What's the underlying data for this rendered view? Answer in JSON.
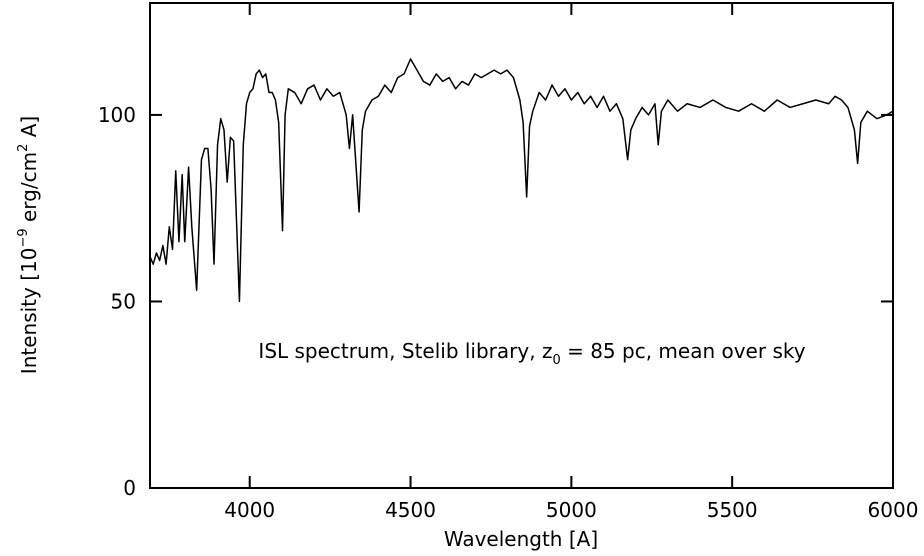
{
  "chart_data": {
    "type": "line",
    "x_label": "Wavelength [A]",
    "y_label": [
      "Intensity [10",
      "−9",
      " erg/cm",
      "2",
      " A]"
    ],
    "annotation": [
      "ISL spectrum, Stelib library, z",
      "0",
      " = 85 pc, mean over sky"
    ],
    "color": "#000000",
    "xlim": [
      3690,
      6000
    ],
    "ylim": [
      0,
      130
    ],
    "xticks": [
      4000,
      4500,
      5000,
      5500,
      6000
    ],
    "yticks": [
      0,
      50,
      100
    ],
    "x": [
      3690,
      3700,
      3710,
      3720,
      3730,
      3740,
      3750,
      3760,
      3770,
      3780,
      3790,
      3798,
      3810,
      3820,
      3835,
      3850,
      3860,
      3870,
      3880,
      3889,
      3900,
      3910,
      3920,
      3930,
      3940,
      3950,
      3968,
      3980,
      3990,
      4000,
      4010,
      4020,
      4030,
      4040,
      4050,
      4060,
      4070,
      4080,
      4090,
      4102,
      4110,
      4120,
      4140,
      4160,
      4180,
      4200,
      4220,
      4240,
      4260,
      4280,
      4300,
      4310,
      4320,
      4340,
      4350,
      4360,
      4380,
      4400,
      4420,
      4440,
      4460,
      4480,
      4500,
      4520,
      4540,
      4560,
      4580,
      4600,
      4620,
      4640,
      4660,
      4680,
      4700,
      4720,
      4740,
      4760,
      4780,
      4800,
      4820,
      4840,
      4850,
      4861,
      4870,
      4880,
      4900,
      4920,
      4940,
      4960,
      4980,
      5000,
      5020,
      5040,
      5060,
      5080,
      5100,
      5120,
      5140,
      5160,
      5175,
      5185,
      5200,
      5220,
      5240,
      5260,
      5270,
      5280,
      5300,
      5330,
      5360,
      5400,
      5440,
      5480,
      5520,
      5560,
      5600,
      5640,
      5680,
      5720,
      5760,
      5800,
      5820,
      5840,
      5860,
      5880,
      5890,
      5900,
      5920,
      5950,
      5980,
      6000
    ],
    "values": [
      62,
      60,
      63,
      61,
      65,
      60,
      70,
      64,
      85,
      66,
      84,
      66,
      86,
      70,
      53,
      88,
      91,
      91,
      80,
      60,
      92,
      99,
      96,
      82,
      94,
      93,
      50,
      92,
      103,
      106,
      107,
      111,
      112,
      110,
      111,
      106,
      106,
      104,
      98,
      69,
      100,
      107,
      106,
      103,
      107,
      108,
      104,
      107,
      105,
      106,
      100,
      91,
      100,
      74,
      96,
      101,
      104,
      105,
      108,
      106,
      110,
      111,
      115,
      112,
      109,
      108,
      111,
      109,
      110,
      107,
      109,
      108,
      111,
      110,
      111,
      112,
      111,
      112,
      110,
      104,
      98,
      78,
      97,
      101,
      106,
      104,
      108,
      105,
      107,
      104,
      106,
      103,
      105,
      102,
      105,
      101,
      103,
      99,
      88,
      96,
      99,
      102,
      100,
      103,
      92,
      101,
      104,
      101,
      103,
      102,
      104,
      102,
      101,
      103,
      101,
      104,
      102,
      103,
      104,
      103,
      105,
      104,
      102,
      96,
      87,
      98,
      101,
      99,
      100,
      101
    ]
  }
}
